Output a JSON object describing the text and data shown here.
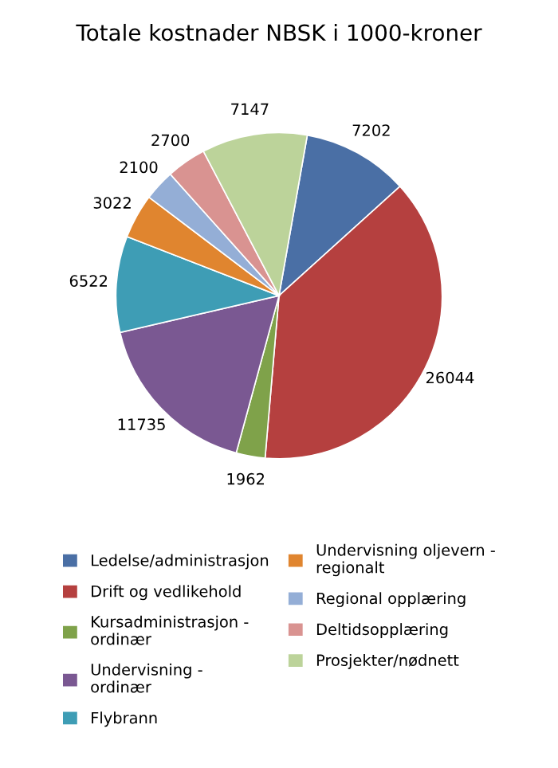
{
  "chart_data": {
    "type": "pie",
    "title": "Totale kostnader NBSK i 1000-kroner",
    "categories": [
      "Ledelse/administrasjon",
      "Drift og vedlikehold",
      "Kursadministrasjon -\nordinær",
      "Undervisning -\nordinær",
      "Flybrann",
      "Undervisning oljevern -\nregionalt",
      "Regional opplæring",
      "Deltidsopplæring",
      "Prosjekter/nødnett"
    ],
    "values": [
      7202,
      26044,
      1962,
      11735,
      6522,
      3022,
      2100,
      2700,
      7147
    ],
    "colors": [
      "#4a6fa5",
      "#b5403f",
      "#7fa24a",
      "#7a5892",
      "#3e9db5",
      "#e0852f",
      "#94aed6",
      "#d99391",
      "#bcd39a"
    ],
    "data_labels": true,
    "legend": "bottom"
  }
}
